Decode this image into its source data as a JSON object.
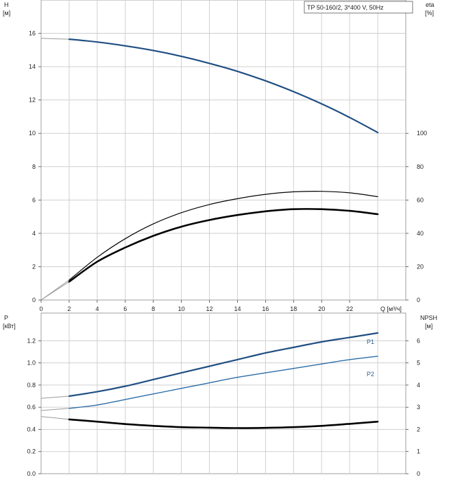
{
  "chart_data": [
    {
      "type": "line",
      "subtitle": "TP 50-160/2, 3*400 V, 50Hz",
      "y_label": "H",
      "y_unit": "[м]",
      "y2_label": "eta",
      "y2_unit": "[%]",
      "x_label": "Q [м³/ч]",
      "x_range": [
        0,
        26
      ],
      "x_ticks": [
        0,
        2,
        4,
        6,
        8,
        10,
        12,
        14,
        16,
        18,
        20,
        22
      ],
      "y_range": [
        0,
        18
      ],
      "y_ticks": [
        0,
        2,
        4,
        6,
        8,
        10,
        12,
        14,
        16
      ],
      "y2_range": [
        0,
        180
      ],
      "y2_ticks": [
        0,
        20,
        40,
        60,
        80,
        100
      ],
      "grid": true,
      "series": [
        {
          "axis": "H",
          "color": "#1f4e82",
          "x": [
            0,
            2,
            4,
            6,
            8,
            10,
            12,
            14,
            16,
            18,
            20,
            22,
            24
          ],
          "y": [
            15.7,
            15.65,
            15.48,
            15.25,
            14.97,
            14.62,
            14.2,
            13.72,
            13.15,
            12.5,
            11.77,
            10.95,
            10.05
          ]
        },
        {
          "axis": "eta",
          "color": "#000000",
          "x": [
            0,
            2,
            4,
            6,
            8,
            10,
            12,
            14,
            16,
            18,
            20,
            22,
            24
          ],
          "y": [
            0,
            12,
            25.6,
            36.8,
            45.7,
            52.4,
            57.3,
            60.8,
            63.4,
            64.9,
            65.2,
            64.3,
            62
          ]
        },
        {
          "axis": "H",
          "color": "#000000",
          "x": [
            0,
            2,
            4,
            6,
            8,
            10,
            12,
            14,
            16,
            18,
            20,
            22,
            24
          ],
          "y": [
            0,
            1.1,
            2.3,
            3.15,
            3.85,
            4.4,
            4.8,
            5.1,
            5.32,
            5.45,
            5.45,
            5.35,
            5.15
          ]
        }
      ]
    },
    {
      "type": "line",
      "y_label": "P",
      "y_unit": "[кВт]",
      "y2_label": "NPSH",
      "y2_unit": "[м]",
      "x_range": [
        0,
        26
      ],
      "y_range": [
        0,
        1.45
      ],
      "y_ticks": [
        0.0,
        0.2,
        0.4,
        0.6,
        0.8,
        1.0,
        1.2
      ],
      "y_tick_labels": [
        "0.0",
        "0.2",
        "0.4",
        "0.6",
        "0.8",
        "1.0",
        "1.2"
      ],
      "y2_range": [
        0,
        7.25
      ],
      "y2_ticks": [
        0,
        1,
        2,
        3,
        4,
        5,
        6
      ],
      "grid": true,
      "series": [
        {
          "name": "P1",
          "axis": "P",
          "color": "#1f4e82",
          "x": [
            0,
            2,
            4,
            6,
            8,
            10,
            12,
            14,
            16,
            18,
            20,
            22,
            24
          ],
          "y": [
            0.68,
            0.7,
            0.74,
            0.79,
            0.85,
            0.91,
            0.97,
            1.03,
            1.09,
            1.14,
            1.19,
            1.23,
            1.27
          ]
        },
        {
          "name": "P2",
          "axis": "P",
          "color": "#2a6ca6",
          "x": [
            0,
            2,
            4,
            6,
            8,
            10,
            12,
            14,
            16,
            18,
            20,
            22,
            24
          ],
          "y": [
            0.57,
            0.59,
            0.62,
            0.67,
            0.72,
            0.77,
            0.82,
            0.87,
            0.91,
            0.95,
            0.99,
            1.03,
            1.06
          ]
        },
        {
          "axis": "NPSH",
          "color": "#000000",
          "x": [
            0,
            2,
            4,
            6,
            8,
            10,
            12,
            14,
            16,
            18,
            20,
            22,
            24
          ],
          "y": [
            2.58,
            2.45,
            2.35,
            2.24,
            2.16,
            2.1,
            2.08,
            2.06,
            2.07,
            2.1,
            2.16,
            2.25,
            2.35
          ]
        }
      ]
    }
  ]
}
